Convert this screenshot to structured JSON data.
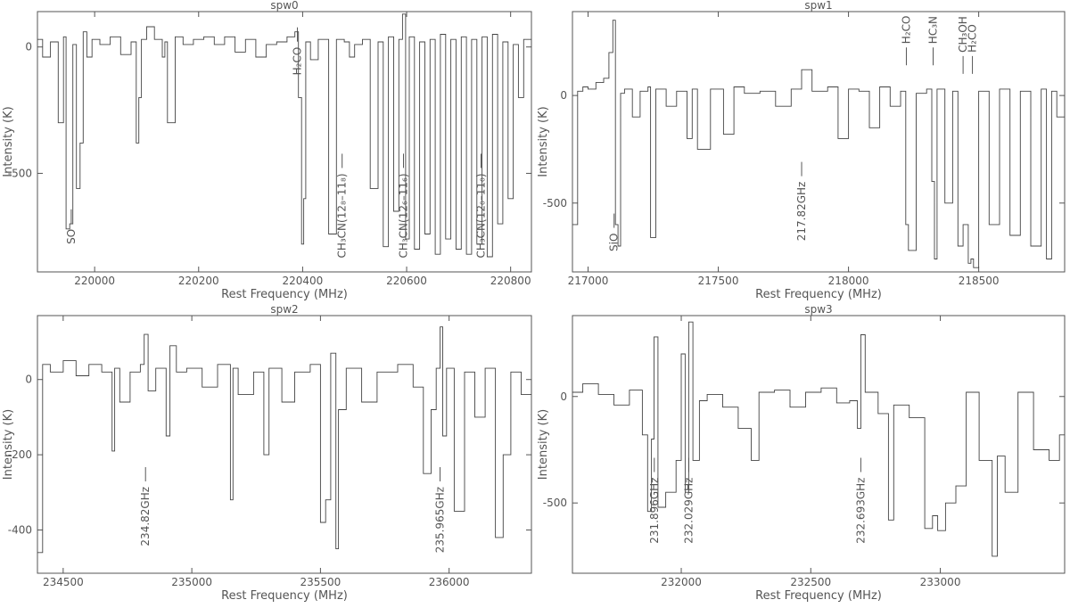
{
  "chart_data": [
    {
      "type": "line",
      "title": "spw0",
      "xlabel": "Rest Frequency (MHz)",
      "ylabel": "Intensity (K)",
      "xlim": [
        219890,
        220840
      ],
      "ylim": [
        -890,
        140
      ],
      "xticks": [
        220000,
        220200,
        220400,
        220600,
        220800
      ],
      "yticks": [
        -500,
        0
      ],
      "series": [
        {
          "x": [
            219890,
            219900,
            219915,
            219930,
            219940,
            219945,
            219952,
            219958,
            219965,
            219972,
            219978,
            219985,
            219995,
            220010,
            220030,
            220050,
            220070,
            220080,
            220085,
            220090,
            220100,
            220115,
            220130,
            220135,
            220140,
            220155,
            220170,
            220190,
            220210,
            220230,
            220250,
            220270,
            220290,
            220310,
            220330,
            220350,
            220370,
            220385,
            220392,
            220398,
            220402,
            220406,
            220415,
            220430,
            220450,
            220465,
            220480,
            220490,
            220500,
            220515,
            220530,
            220545,
            220555,
            220565,
            220575,
            220585,
            220592,
            220598,
            220605,
            220615,
            220625,
            220635,
            220645,
            220655,
            220665,
            220675,
            220685,
            220695,
            220705,
            220715,
            220725,
            220735,
            220745,
            220755,
            220765,
            220775,
            220785,
            220795,
            220805,
            220815,
            220825,
            220840
          ],
          "y": [
            30,
            -40,
            20,
            -300,
            40,
            -720,
            -700,
            10,
            -560,
            -380,
            60,
            -40,
            30,
            10,
            40,
            -30,
            20,
            -380,
            -200,
            30,
            80,
            30,
            -40,
            20,
            -300,
            40,
            10,
            30,
            40,
            10,
            40,
            -20,
            30,
            -40,
            10,
            20,
            40,
            60,
            -200,
            -780,
            -600,
            20,
            -50,
            30,
            -740,
            30,
            20,
            -40,
            10,
            30,
            -560,
            20,
            -790,
            40,
            -650,
            30,
            130,
            -760,
            40,
            -800,
            20,
            -740,
            30,
            -820,
            50,
            -760,
            30,
            -800,
            40,
            -820,
            30,
            -780,
            40,
            -830,
            50,
            -700,
            20,
            -600,
            10,
            -200,
            30,
            0
          ]
        }
      ],
      "annotations": [
        {
          "label": "SO",
          "x": 219955,
          "y_text": -720
        },
        {
          "label": "H₂CO",
          "x": 220390,
          "y_text": 0
        },
        {
          "label": "CH₃CN(12₈–11₈)",
          "x": 220476,
          "y_text": -500
        },
        {
          "label": "CH₃CN(12₆–11₆)",
          "x": 220594,
          "y_text": -500
        },
        {
          "label": "CH₃CN(12₀–11₀)",
          "x": 220743,
          "y_text": -500
        }
      ]
    },
    {
      "type": "line",
      "title": "spw1",
      "xlabel": "Rest Frequency (MHz)",
      "ylabel": "Intensity (K)",
      "xlim": [
        216940,
        218830
      ],
      "ylim": [
        -820,
        390
      ],
      "xticks": [
        217000,
        217500,
        218000,
        218500
      ],
      "yticks": [
        -500,
        0
      ],
      "series": [
        {
          "x": [
            216940,
            216960,
            216980,
            217000,
            217030,
            217060,
            217080,
            217095,
            217105,
            217115,
            217125,
            217140,
            217170,
            217200,
            217230,
            217240,
            217260,
            217300,
            217340,
            217380,
            217400,
            217420,
            217470,
            217520,
            217560,
            217600,
            217660,
            217720,
            217780,
            217820,
            217860,
            217920,
            217960,
            218000,
            218040,
            218080,
            218120,
            218160,
            218200,
            218220,
            218230,
            218260,
            218300,
            218320,
            218330,
            218340,
            218370,
            218400,
            218420,
            218440,
            218460,
            218470,
            218480,
            218500,
            218540,
            218580,
            218620,
            218660,
            218700,
            218740,
            218760,
            218780,
            218800,
            218830
          ],
          "y": [
            -600,
            20,
            40,
            30,
            60,
            80,
            200,
            350,
            -600,
            -700,
            10,
            30,
            -100,
            20,
            40,
            -660,
            30,
            -50,
            20,
            -200,
            30,
            -250,
            30,
            -180,
            40,
            10,
            20,
            -50,
            30,
            120,
            20,
            40,
            -200,
            30,
            20,
            -150,
            40,
            -50,
            20,
            -600,
            -720,
            10,
            30,
            -400,
            -760,
            30,
            -500,
            20,
            -700,
            -600,
            -780,
            -760,
            -800,
            20,
            -600,
            30,
            -650,
            20,
            -700,
            30,
            -760,
            20,
            -100,
            0
          ]
        }
      ],
      "annotations": [
        {
          "label": "SiO",
          "x": 217100,
          "y_text": -640
        },
        {
          "label": "217.82GHz",
          "x": 217820,
          "y_text": -400
        },
        {
          "label": "H₂CO",
          "x": 218222,
          "y_text": 240
        },
        {
          "label": "HC₃N",
          "x": 218325,
          "y_text": 240
        },
        {
          "label": "CH₃OH",
          "x": 218440,
          "y_text": 200
        },
        {
          "label": "H₂CO",
          "x": 218476,
          "y_text": 200
        }
      ]
    },
    {
      "type": "line",
      "title": "spw2",
      "xlabel": "Rest Frequency (MHz)",
      "ylabel": "Intensity (K)",
      "xlim": [
        234400,
        236320
      ],
      "ylim": [
        -515,
        170
      ],
      "xticks": [
        234500,
        235000,
        235500,
        236000
      ],
      "yticks": [
        -400,
        -200,
        0
      ],
      "series": [
        {
          "x": [
            234400,
            234420,
            234450,
            234500,
            234550,
            234600,
            234650,
            234690,
            234700,
            234720,
            234760,
            234800,
            234815,
            234830,
            234860,
            234900,
            234915,
            234940,
            234980,
            235040,
            235100,
            235150,
            235160,
            235180,
            235240,
            235280,
            235300,
            235350,
            235400,
            235460,
            235500,
            235520,
            235540,
            235560,
            235570,
            235600,
            235660,
            235720,
            235800,
            235860,
            235900,
            235930,
            235950,
            235965,
            235975,
            235990,
            236020,
            236060,
            236100,
            236140,
            236180,
            236210,
            236240,
            236280,
            236320
          ],
          "y": [
            -460,
            40,
            20,
            50,
            10,
            40,
            20,
            -190,
            30,
            -60,
            20,
            40,
            120,
            -30,
            30,
            -150,
            90,
            20,
            30,
            -20,
            40,
            -320,
            30,
            -40,
            20,
            -200,
            30,
            -60,
            20,
            40,
            -380,
            -320,
            70,
            -450,
            -80,
            30,
            -60,
            20,
            40,
            -20,
            -250,
            -80,
            30,
            140,
            -150,
            30,
            -350,
            20,
            -100,
            30,
            -420,
            -200,
            20,
            -40,
            0
          ]
        }
      ],
      "annotations": [
        {
          "label": "234.82GHz",
          "x": 234820,
          "y_text": -285
        },
        {
          "label": "235.965GHz",
          "x": 235965,
          "y_text": -285
        }
      ]
    },
    {
      "type": "line",
      "title": "spw3",
      "xlabel": "Rest Frequency (MHz)",
      "ylabel": "Intensity (K)",
      "xlim": [
        231580,
        233480
      ],
      "ylim": [
        -830,
        380
      ],
      "xticks": [
        232000,
        232500,
        233000
      ],
      "yticks": [
        -500,
        0
      ],
      "series": [
        {
          "x": [
            231580,
            231620,
            231680,
            231740,
            231800,
            231850,
            231870,
            231885,
            231895,
            231910,
            231940,
            231980,
            232000,
            232015,
            232029,
            232045,
            232070,
            232100,
            232160,
            232220,
            232270,
            232300,
            232360,
            232420,
            232480,
            232540,
            232600,
            232650,
            232680,
            232693,
            232710,
            232760,
            232800,
            232820,
            232880,
            232940,
            232970,
            232990,
            233020,
            233060,
            233100,
            233150,
            233200,
            233220,
            233250,
            233300,
            233360,
            233420,
            233460,
            233480
          ],
          "y": [
            20,
            60,
            10,
            -40,
            30,
            -180,
            -540,
            -200,
            280,
            -520,
            -450,
            -300,
            200,
            -450,
            350,
            -300,
            -20,
            10,
            -50,
            -150,
            -300,
            20,
            30,
            -50,
            20,
            40,
            -30,
            -20,
            -150,
            290,
            20,
            -80,
            -580,
            -40,
            -100,
            -620,
            -560,
            -630,
            -500,
            -420,
            20,
            -300,
            -750,
            -280,
            -450,
            20,
            -250,
            -300,
            -180,
            0
          ]
        }
      ],
      "annotations": [
        {
          "label": "231.896GHz",
          "x": 231896,
          "y_text": -380
        },
        {
          "label": "232.029GHz",
          "x": 232029,
          "y_text": -380
        },
        {
          "label": "232.693GHz",
          "x": 232693,
          "y_text": -380
        }
      ]
    }
  ]
}
